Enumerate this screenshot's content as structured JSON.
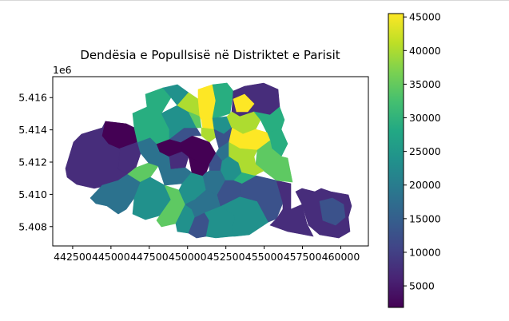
{
  "chart_data": {
    "type": "choropleth",
    "title": "Dendësia e Popullsisë në Distriktet e Parisit",
    "xlabel": "",
    "ylabel": "",
    "x_ticks": [
      "442500",
      "445000",
      "447500",
      "450000",
      "452500",
      "455000",
      "457500",
      "460000"
    ],
    "y_ticks": [
      "5.408",
      "5.410",
      "5.412",
      "5.414",
      "5.416"
    ],
    "y_offset_label": "1e6",
    "xlim": [
      441200,
      461800
    ],
    "ylim": [
      5406800,
      5417300
    ],
    "colorbar": {
      "colormap": "viridis",
      "range": [
        1800,
        45500
      ],
      "ticks": [
        "5000",
        "10000",
        "15000",
        "20000",
        "25000",
        "30000",
        "35000",
        "40000",
        "45000"
      ]
    },
    "grid": false,
    "legend": "colorbar-right"
  }
}
